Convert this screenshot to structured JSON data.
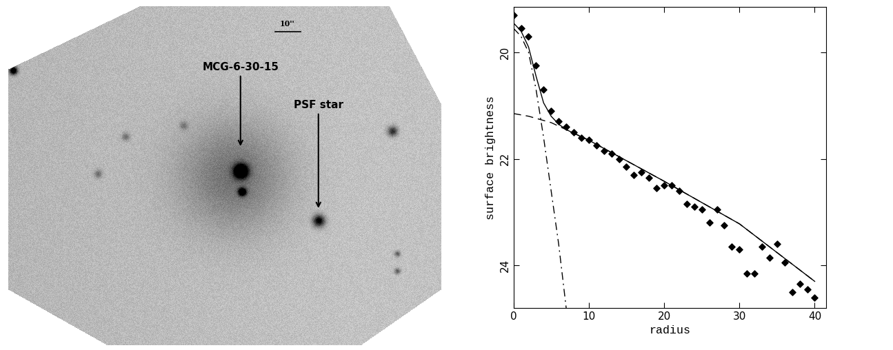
{
  "chart_data": [
    {
      "type": "image",
      "annotations": [
        "MCG-6-30-15",
        "PSF star"
      ],
      "scale_bar": "10''"
    },
    {
      "type": "scatter",
      "xlabel": "radius",
      "ylabel": "surface brightness",
      "xlim": [
        0,
        41.5
      ],
      "ylim": [
        24.8,
        19.15
      ],
      "xticks": [
        0,
        10,
        20,
        30,
        40
      ],
      "yticks": [
        20,
        22,
        24
      ],
      "series": [
        {
          "type": "scatter",
          "marker": "diamond",
          "color": "#000000",
          "x": [
            0,
            1,
            2,
            3,
            4,
            5,
            6,
            7,
            8,
            9,
            10,
            11,
            12,
            13,
            14,
            15,
            16,
            17,
            18,
            19,
            20,
            21,
            22,
            23,
            24,
            25,
            26,
            27,
            28,
            29,
            30,
            31,
            32,
            33,
            34,
            35,
            36,
            37,
            38,
            39,
            40
          ],
          "values": [
            19.3,
            19.55,
            19.7,
            20.25,
            20.7,
            21.1,
            21.3,
            21.4,
            21.5,
            21.6,
            21.65,
            21.75,
            21.85,
            21.9,
            22.0,
            22.15,
            22.3,
            22.25,
            22.35,
            22.55,
            22.5,
            22.5,
            22.6,
            22.85,
            22.9,
            22.95,
            23.2,
            22.95,
            23.25,
            23.65,
            23.7,
            24.15,
            24.15,
            23.65,
            23.85,
            23.6,
            23.95,
            24.5,
            24.35,
            24.45,
            24.6
          ]
        },
        {
          "type": "line",
          "line_style": "solid",
          "color": "#000000",
          "x": [
            0,
            1,
            2,
            3,
            4,
            5,
            6,
            7,
            8,
            10,
            20,
            30,
            40
          ],
          "values": [
            19.45,
            19.6,
            19.9,
            20.45,
            20.95,
            21.2,
            21.35,
            21.45,
            21.52,
            21.65,
            22.42,
            23.22,
            24.3
          ]
        },
        {
          "type": "line",
          "line_style": "dashed",
          "color": "#000000",
          "x": [
            0,
            2,
            5,
            10,
            20,
            30,
            40
          ],
          "values": [
            21.15,
            21.2,
            21.32,
            21.65,
            22.42,
            23.22,
            24.3
          ]
        },
        {
          "type": "line",
          "line_style": "dashdot",
          "color": "#000000",
          "x": [
            0,
            1,
            2,
            3,
            4,
            5,
            6,
            7
          ],
          "values": [
            19.55,
            19.7,
            20.0,
            20.7,
            21.6,
            22.6,
            23.6,
            24.8
          ]
        }
      ]
    }
  ]
}
